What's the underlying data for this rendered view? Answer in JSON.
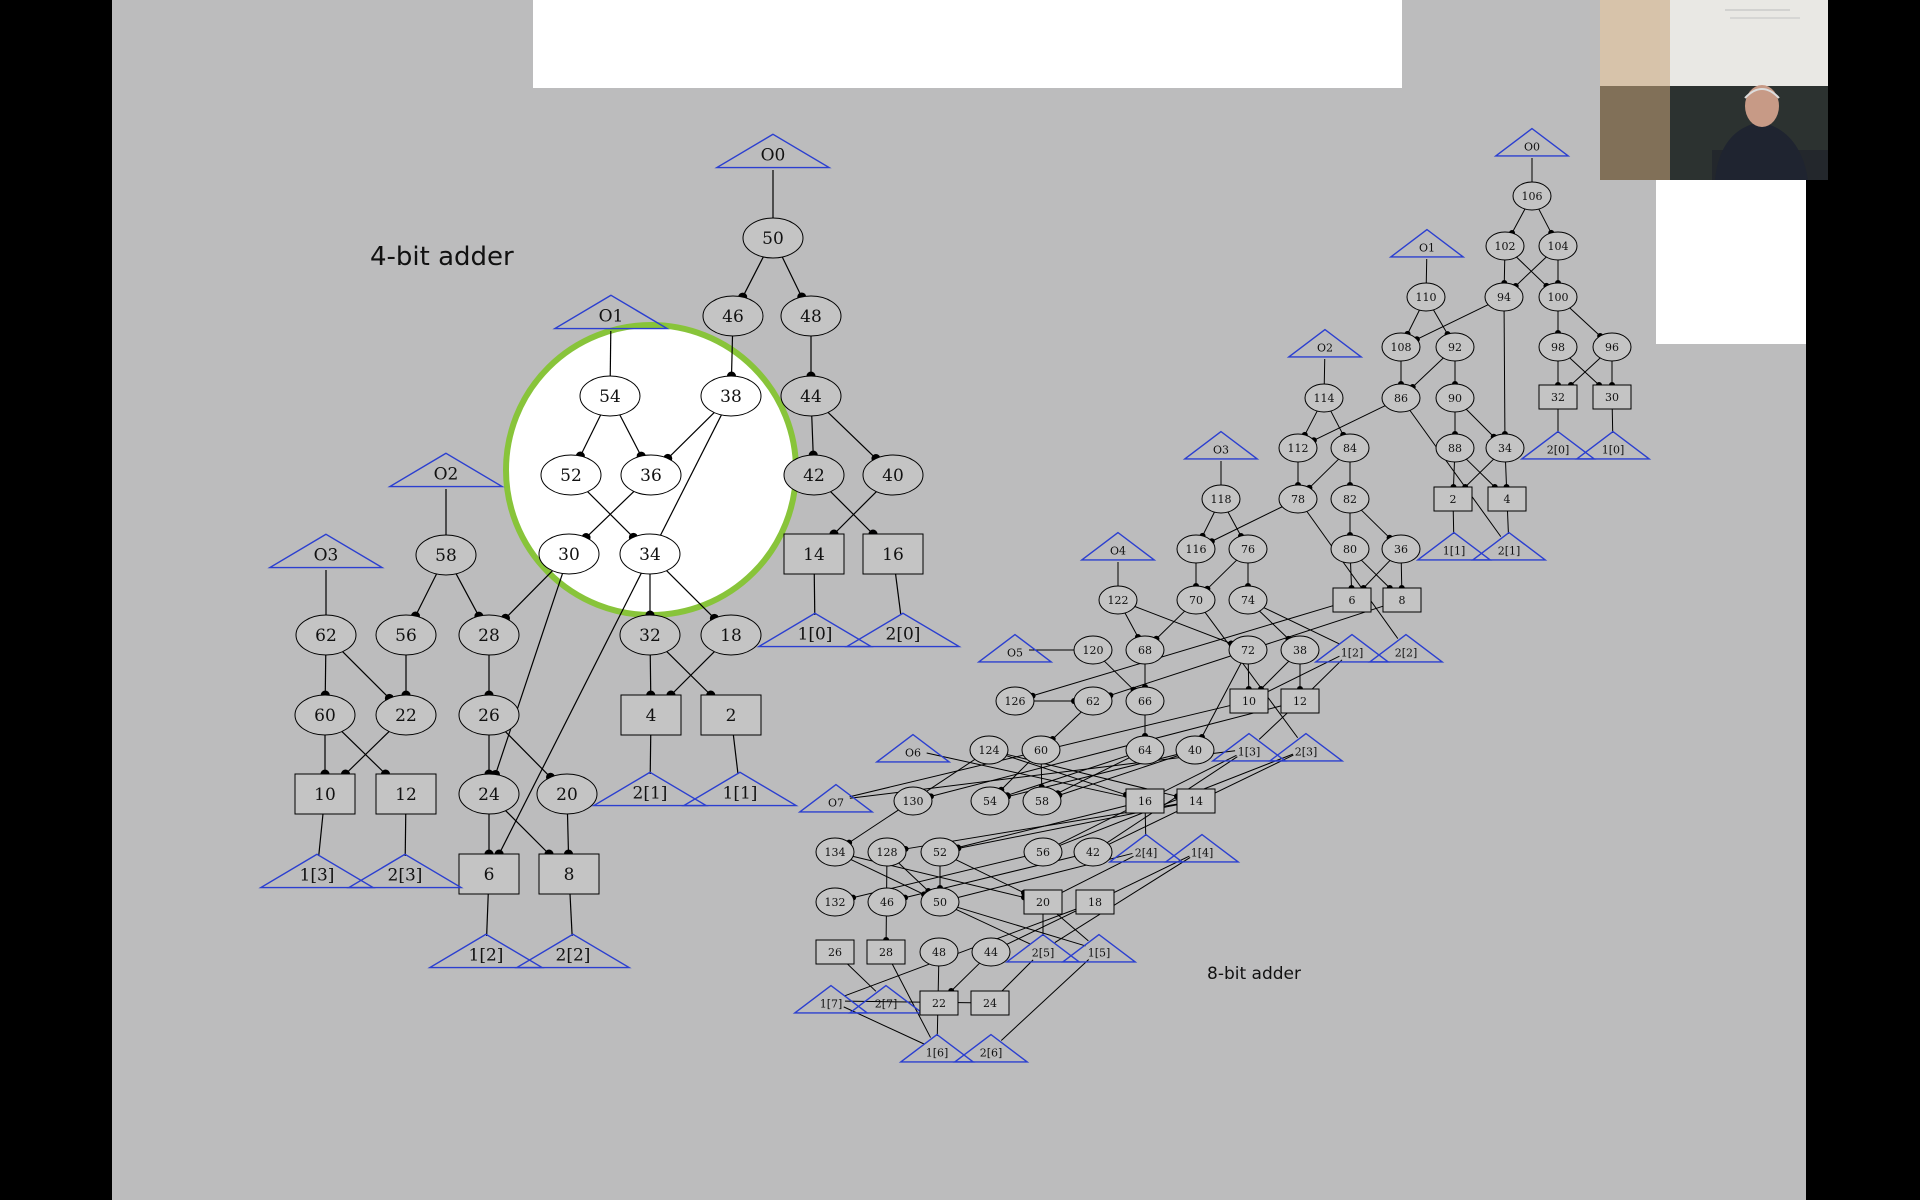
{
  "titles": {
    "adder4": "4-bit adder",
    "adder8": "8-bit adder"
  },
  "colors": {
    "slide_bg": "#bcbcbd",
    "node_fill": "#c4c4c4",
    "highlight_fill": "#ffffff",
    "highlight_ring": "#88c43a",
    "io_triangle": "#2b3fd0",
    "edge": "#000000"
  },
  "adder4": {
    "nodes": [
      {
        "id": "O0",
        "shape": "tri"
      },
      {
        "id": "50",
        "shape": "ell"
      },
      {
        "id": "46",
        "shape": "ell"
      },
      {
        "id": "48",
        "shape": "ell"
      },
      {
        "id": "O1",
        "shape": "tri"
      },
      {
        "id": "54",
        "shape": "ell",
        "hl": true
      },
      {
        "id": "38",
        "shape": "ell",
        "hl": true
      },
      {
        "id": "44",
        "shape": "ell"
      },
      {
        "id": "52",
        "shape": "ell",
        "hl": true
      },
      {
        "id": "36",
        "shape": "ell",
        "hl": true
      },
      {
        "id": "42",
        "shape": "ell"
      },
      {
        "id": "40",
        "shape": "ell"
      },
      {
        "id": "30",
        "shape": "ell",
        "hl": true
      },
      {
        "id": "34",
        "shape": "ell",
        "hl": true
      },
      {
        "id": "14",
        "shape": "box"
      },
      {
        "id": "16",
        "shape": "box"
      },
      {
        "id": "O2",
        "shape": "tri"
      },
      {
        "id": "58",
        "shape": "ell"
      },
      {
        "id": "O3",
        "shape": "tri"
      },
      {
        "id": "62",
        "shape": "ell"
      },
      {
        "id": "56",
        "shape": "ell"
      },
      {
        "id": "28",
        "shape": "ell"
      },
      {
        "id": "32",
        "shape": "ell"
      },
      {
        "id": "18",
        "shape": "ell"
      },
      {
        "id": "60",
        "shape": "ell"
      },
      {
        "id": "22",
        "shape": "ell"
      },
      {
        "id": "26",
        "shape": "ell"
      },
      {
        "id": "4",
        "shape": "box"
      },
      {
        "id": "2",
        "shape": "box"
      },
      {
        "id": "10",
        "shape": "box"
      },
      {
        "id": "12",
        "shape": "box"
      },
      {
        "id": "24",
        "shape": "ell"
      },
      {
        "id": "20",
        "shape": "ell"
      },
      {
        "id": "6",
        "shape": "box"
      },
      {
        "id": "8",
        "shape": "box"
      },
      {
        "id": "1[0]",
        "shape": "tri"
      },
      {
        "id": "2[0]",
        "shape": "tri"
      },
      {
        "id": "2[1]",
        "shape": "tri"
      },
      {
        "id": "1[1]",
        "shape": "tri"
      },
      {
        "id": "1[3]",
        "shape": "tri"
      },
      {
        "id": "2[3]",
        "shape": "tri"
      },
      {
        "id": "1[2]",
        "shape": "tri"
      },
      {
        "id": "2[2]",
        "shape": "tri"
      }
    ]
  },
  "adder8": {
    "nodes": [
      {
        "id": "O0",
        "shape": "tri"
      },
      {
        "id": "106",
        "shape": "ell"
      },
      {
        "id": "102",
        "shape": "ell"
      },
      {
        "id": "104",
        "shape": "ell"
      },
      {
        "id": "O1",
        "shape": "tri"
      },
      {
        "id": "110",
        "shape": "ell"
      },
      {
        "id": "94",
        "shape": "ell"
      },
      {
        "id": "100",
        "shape": "ell"
      },
      {
        "id": "O2",
        "shape": "tri"
      },
      {
        "id": "108",
        "shape": "ell"
      },
      {
        "id": "92",
        "shape": "ell"
      },
      {
        "id": "98",
        "shape": "ell"
      },
      {
        "id": "96",
        "shape": "ell"
      },
      {
        "id": "114",
        "shape": "ell"
      },
      {
        "id": "86",
        "shape": "ell"
      },
      {
        "id": "90",
        "shape": "ell"
      },
      {
        "id": "32",
        "shape": "box"
      },
      {
        "id": "30",
        "shape": "box"
      },
      {
        "id": "O3",
        "shape": "tri"
      },
      {
        "id": "112",
        "shape": "ell"
      },
      {
        "id": "84",
        "shape": "ell"
      },
      {
        "id": "88",
        "shape": "ell"
      },
      {
        "id": "34",
        "shape": "ell"
      },
      {
        "id": "2[0]",
        "shape": "tri"
      },
      {
        "id": "1[0]",
        "shape": "tri"
      },
      {
        "id": "118",
        "shape": "ell"
      },
      {
        "id": "78",
        "shape": "ell"
      },
      {
        "id": "82",
        "shape": "ell"
      },
      {
        "id": "2",
        "shape": "box"
      },
      {
        "id": "4",
        "shape": "box"
      },
      {
        "id": "O4",
        "shape": "tri"
      },
      {
        "id": "116",
        "shape": "ell"
      },
      {
        "id": "76",
        "shape": "ell"
      },
      {
        "id": "80",
        "shape": "ell"
      },
      {
        "id": "36",
        "shape": "ell"
      },
      {
        "id": "1[1]",
        "shape": "tri"
      },
      {
        "id": "2[1]",
        "shape": "tri"
      },
      {
        "id": "122",
        "shape": "ell"
      },
      {
        "id": "70",
        "shape": "ell"
      },
      {
        "id": "74",
        "shape": "ell"
      },
      {
        "id": "6",
        "shape": "box"
      },
      {
        "id": "8",
        "shape": "box"
      },
      {
        "id": "O5",
        "shape": "tri"
      },
      {
        "id": "120",
        "shape": "ell"
      },
      {
        "id": "68",
        "shape": "ell"
      },
      {
        "id": "72",
        "shape": "ell"
      },
      {
        "id": "38",
        "shape": "ell"
      },
      {
        "id": "1[2]",
        "shape": "tri"
      },
      {
        "id": "2[2]",
        "shape": "tri"
      },
      {
        "id": "126",
        "shape": "ell"
      },
      {
        "id": "62",
        "shape": "ell"
      },
      {
        "id": "66",
        "shape": "ell"
      },
      {
        "id": "10",
        "shape": "box"
      },
      {
        "id": "12",
        "shape": "box"
      },
      {
        "id": "O6",
        "shape": "tri"
      },
      {
        "id": "124",
        "shape": "ell"
      },
      {
        "id": "60",
        "shape": "ell"
      },
      {
        "id": "64",
        "shape": "ell"
      },
      {
        "id": "40",
        "shape": "ell"
      },
      {
        "id": "1[3]",
        "shape": "tri"
      },
      {
        "id": "2[3]",
        "shape": "tri"
      },
      {
        "id": "O7",
        "shape": "tri"
      },
      {
        "id": "130",
        "shape": "ell"
      },
      {
        "id": "54",
        "shape": "ell"
      },
      {
        "id": "58",
        "shape": "ell"
      },
      {
        "id": "16",
        "shape": "box"
      },
      {
        "id": "14",
        "shape": "box"
      },
      {
        "id": "134",
        "shape": "ell"
      },
      {
        "id": "128",
        "shape": "ell"
      },
      {
        "id": "52",
        "shape": "ell"
      },
      {
        "id": "56",
        "shape": "ell"
      },
      {
        "id": "42",
        "shape": "ell"
      },
      {
        "id": "2[4]",
        "shape": "tri"
      },
      {
        "id": "1[4]",
        "shape": "tri"
      },
      {
        "id": "132",
        "shape": "ell"
      },
      {
        "id": "46",
        "shape": "ell"
      },
      {
        "id": "50",
        "shape": "ell"
      },
      {
        "id": "20",
        "shape": "box"
      },
      {
        "id": "18",
        "shape": "box"
      },
      {
        "id": "26",
        "shape": "box"
      },
      {
        "id": "28",
        "shape": "box"
      },
      {
        "id": "48",
        "shape": "ell"
      },
      {
        "id": "44",
        "shape": "ell"
      },
      {
        "id": "2[5]",
        "shape": "tri"
      },
      {
        "id": "1[5]",
        "shape": "tri"
      },
      {
        "id": "1[7]",
        "shape": "tri"
      },
      {
        "id": "2[7]",
        "shape": "tri"
      },
      {
        "id": "22",
        "shape": "box"
      },
      {
        "id": "24",
        "shape": "box"
      },
      {
        "id": "1[6]",
        "shape": "tri"
      },
      {
        "id": "2[6]",
        "shape": "tri"
      }
    ]
  }
}
